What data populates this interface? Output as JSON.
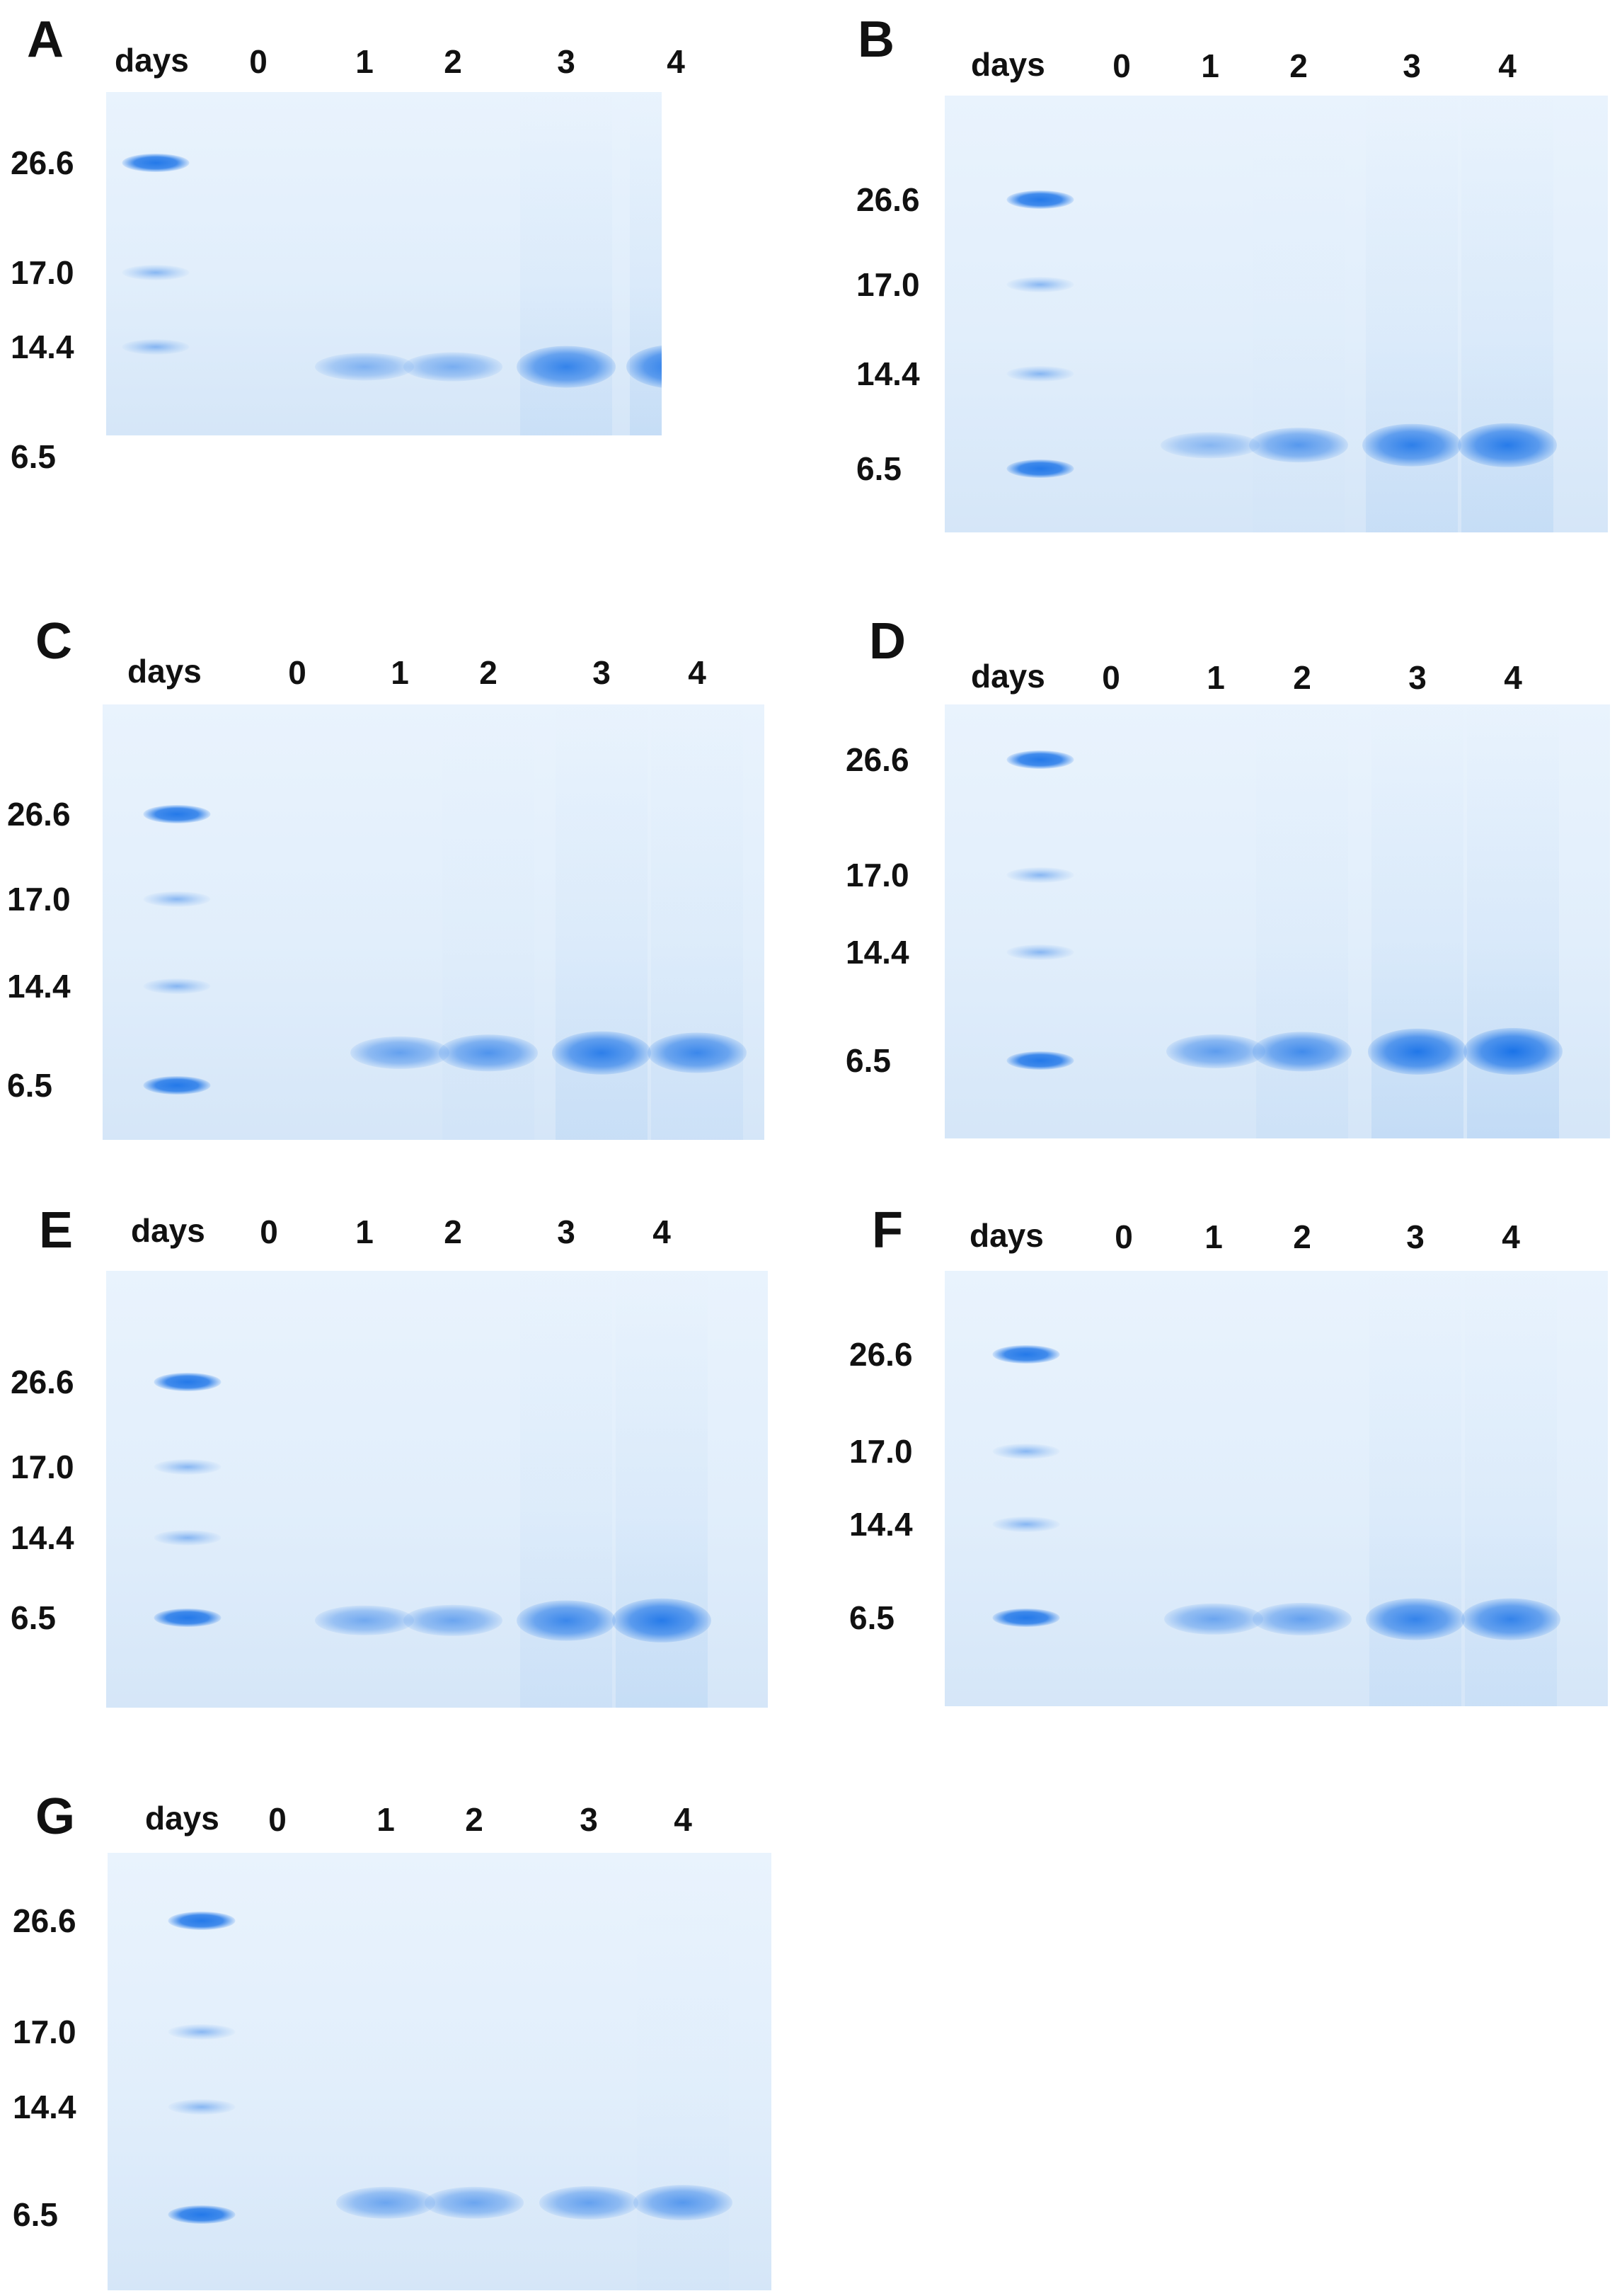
{
  "figure": {
    "days_label": "days",
    "lane_labels": [
      "0",
      "1",
      "2",
      "3",
      "4"
    ],
    "marker_labels": [
      "26.6",
      "17.0",
      "14.4",
      "6.5"
    ],
    "band_color": "#1a73e8",
    "gel_color": "#e4effb"
  },
  "panels": [
    {
      "letter": "A",
      "intensity": [
        0,
        0.25,
        0.3,
        0.8,
        0.9
      ]
    },
    {
      "letter": "B",
      "intensity": [
        0,
        0.2,
        0.55,
        0.85,
        0.9
      ]
    },
    {
      "letter": "C",
      "intensity": [
        0,
        0.45,
        0.6,
        0.85,
        0.75
      ]
    },
    {
      "letter": "D",
      "intensity": [
        0,
        0.5,
        0.7,
        0.95,
        1.0
      ]
    },
    {
      "letter": "E",
      "intensity": [
        0,
        0.35,
        0.4,
        0.75,
        0.9
      ]
    },
    {
      "letter": "F",
      "intensity": [
        0,
        0.4,
        0.45,
        0.8,
        0.8
      ]
    },
    {
      "letter": "G",
      "intensity": [
        0,
        0.4,
        0.4,
        0.45,
        0.55
      ]
    }
  ]
}
